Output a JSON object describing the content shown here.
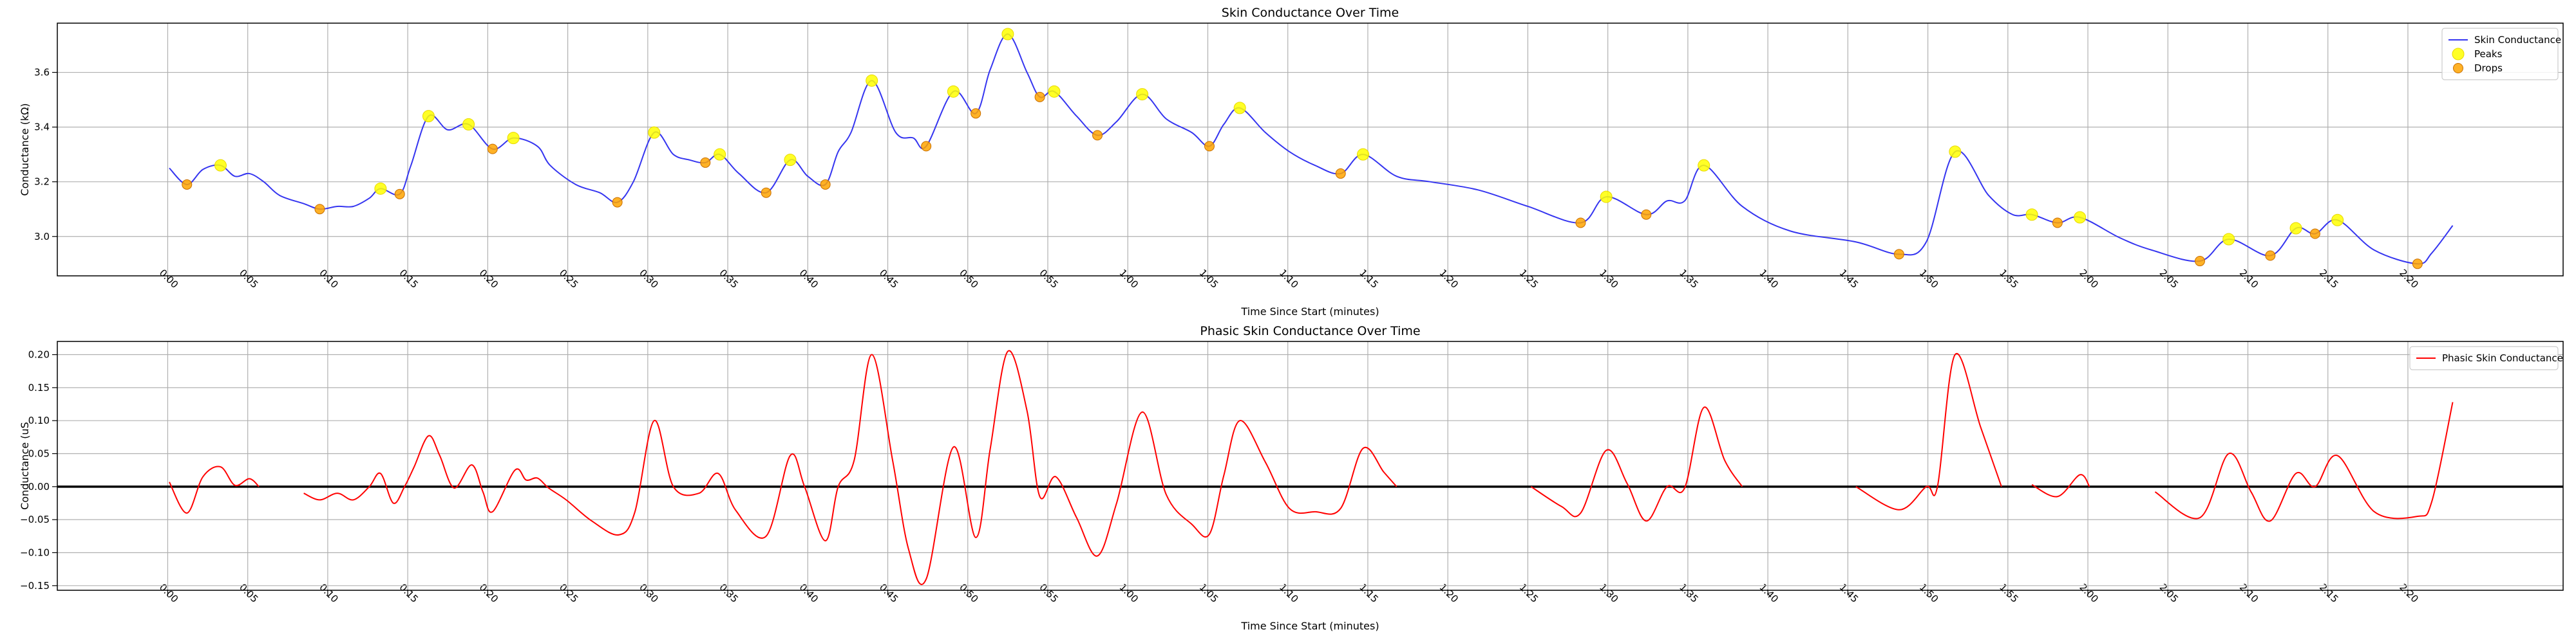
{
  "chart_data": [
    {
      "type": "line",
      "title": "Skin Conductance Over Time",
      "x_label": "Time Since Start (minutes)",
      "y_label": "Conductance (kΩ)",
      "xlim": [
        -6.9,
        149.7
      ],
      "ylim": [
        2.856,
        3.78
      ],
      "grid": true,
      "legend": "upper right",
      "xticks": [
        {
          "value": 0,
          "label": "0:00"
        },
        {
          "value": 5,
          "label": "0:05"
        },
        {
          "value": 10,
          "label": "0:10"
        },
        {
          "value": 15,
          "label": "0:15"
        },
        {
          "value": 20,
          "label": "0:20"
        },
        {
          "value": 25,
          "label": "0:25"
        },
        {
          "value": 30,
          "label": "0:30"
        },
        {
          "value": 35,
          "label": "0:35"
        },
        {
          "value": 40,
          "label": "0:40"
        },
        {
          "value": 45,
          "label": "0:45"
        },
        {
          "value": 50,
          "label": "0:50"
        },
        {
          "value": 55,
          "label": "0:55"
        },
        {
          "value": 60,
          "label": "1:00"
        },
        {
          "value": 65,
          "label": "1:05"
        },
        {
          "value": 70,
          "label": "1:10"
        },
        {
          "value": 75,
          "label": "1:15"
        },
        {
          "value": 80,
          "label": "1:20"
        },
        {
          "value": 85,
          "label": "1:25"
        },
        {
          "value": 90,
          "label": "1:30"
        },
        {
          "value": 95,
          "label": "1:35"
        },
        {
          "value": 100,
          "label": "1:40"
        },
        {
          "value": 105,
          "label": "1:45"
        },
        {
          "value": 110,
          "label": "1:50"
        },
        {
          "value": 115,
          "label": "1:55"
        },
        {
          "value": 120,
          "label": "2:00"
        },
        {
          "value": 125,
          "label": "2:05"
        },
        {
          "value": 130,
          "label": "2:10"
        },
        {
          "value": 135,
          "label": "2:15"
        },
        {
          "value": 140,
          "label": "2:20"
        }
      ],
      "yticks": [
        {
          "value": 3,
          "label": "3.0"
        },
        {
          "value": 3.2,
          "label": "3.2"
        },
        {
          "value": 3.4,
          "label": "3.4"
        },
        {
          "value": 3.6,
          "label": "3.6"
        }
      ],
      "series": [
        {
          "name": "Skin Conductance",
          "type": "line",
          "color": "#3535f0",
          "x": [
            0.1,
            1.2,
            2.2,
            3.3,
            4.2,
            5.1,
            6.0,
            7.0,
            8.5,
            9.5,
            10.6,
            11.6,
            12.6,
            13.3,
            14.5,
            15.2,
            16.3,
            17.5,
            18.8,
            20.3,
            21.6,
            23.1,
            23.9,
            25.5,
            27.0,
            28.1,
            29.1,
            30.4,
            31.6,
            32.6,
            33.6,
            34.5,
            35.7,
            37.4,
            38.9,
            40.0,
            41.1,
            41.9,
            42.7,
            44.0,
            45.5,
            46.6,
            47.4,
            49.1,
            50.5,
            51.4,
            52.5,
            53.7,
            54.5,
            55.4,
            56.8,
            58.1,
            59.3,
            60.9,
            62.4,
            64.0,
            65.1,
            66.0,
            67.0,
            68.6,
            70.1,
            71.7,
            73.3,
            74.7,
            76.8,
            78.9,
            81.9,
            85.0,
            88.3,
            89.9,
            92.4,
            93.7,
            94.8,
            96.0,
            98.4,
            101.4,
            105.5,
            108.2,
            109.9,
            111.7,
            113.8,
            115.3,
            116.5,
            118.1,
            119.5,
            122.0,
            124.0,
            127.0,
            128.8,
            131.4,
            133.0,
            134.2,
            135.6,
            137.9,
            140.6,
            141.5,
            142.8
          ],
          "values": [
            3.25,
            3.19,
            3.245,
            3.26,
            3.22,
            3.23,
            3.2,
            3.15,
            3.12,
            3.1,
            3.11,
            3.11,
            3.14,
            3.175,
            3.155,
            3.26,
            3.44,
            3.39,
            3.41,
            3.32,
            3.36,
            3.33,
            3.26,
            3.19,
            3.16,
            3.125,
            3.2,
            3.38,
            3.3,
            3.28,
            3.27,
            3.3,
            3.23,
            3.16,
            3.28,
            3.22,
            3.19,
            3.31,
            3.38,
            3.57,
            3.38,
            3.36,
            3.33,
            3.53,
            3.45,
            3.61,
            3.74,
            3.6,
            3.51,
            3.53,
            3.44,
            3.37,
            3.42,
            3.52,
            3.43,
            3.38,
            3.33,
            3.41,
            3.47,
            3.38,
            3.31,
            3.26,
            3.23,
            3.3,
            3.22,
            3.2,
            3.17,
            3.11,
            3.05,
            3.145,
            3.08,
            3.13,
            3.13,
            3.26,
            3.11,
            3.02,
            2.98,
            2.935,
            2.98,
            3.31,
            3.15,
            3.08,
            3.08,
            3.05,
            3.07,
            2.995,
            2.95,
            2.91,
            2.99,
            2.93,
            3.03,
            3.01,
            3.06,
            2.95,
            2.9,
            2.94,
            3.04
          ]
        },
        {
          "name": "Peaks",
          "type": "scatter",
          "color": "#ffff00",
          "x": [
            3.3,
            13.3,
            16.3,
            18.8,
            21.6,
            30.4,
            34.5,
            38.9,
            44.0,
            49.1,
            52.5,
            55.4,
            60.9,
            67.0,
            74.7,
            89.9,
            96.0,
            111.7,
            116.5,
            119.5,
            128.8,
            133.0,
            135.6
          ],
          "values": [
            3.26,
            3.175,
            3.44,
            3.41,
            3.36,
            3.38,
            3.3,
            3.28,
            3.57,
            3.53,
            3.74,
            3.53,
            3.52,
            3.47,
            3.3,
            3.145,
            3.26,
            3.31,
            3.08,
            3.07,
            2.99,
            3.03,
            3.06
          ]
        },
        {
          "name": "Drops",
          "type": "scatter",
          "color": "#ffa500",
          "x": [
            1.2,
            9.5,
            14.5,
            20.3,
            28.1,
            33.6,
            37.4,
            41.1,
            47.4,
            50.5,
            54.5,
            58.1,
            65.1,
            73.3,
            88.3,
            92.4,
            108.2,
            118.1,
            127.0,
            131.4,
            134.2,
            140.6
          ],
          "values": [
            3.19,
            3.1,
            3.155,
            3.32,
            3.125,
            3.27,
            3.16,
            3.19,
            3.33,
            3.45,
            3.51,
            3.37,
            3.33,
            3.23,
            3.05,
            3.08,
            2.935,
            3.05,
            2.91,
            2.93,
            3.01,
            2.9
          ]
        }
      ]
    },
    {
      "type": "line",
      "title": "Phasic Skin Conductance Over Time",
      "x_label": "Time Since Start (minutes)",
      "y_label": "Conductance (uS",
      "xlim": [
        -6.9,
        149.7
      ],
      "ylim": [
        -0.157,
        0.22
      ],
      "grid": true,
      "legend": "upper right",
      "hline": 0,
      "xticks": [
        {
          "value": 0,
          "label": "0:00"
        },
        {
          "value": 5,
          "label": "0:05"
        },
        {
          "value": 10,
          "label": "0:10"
        },
        {
          "value": 15,
          "label": "0:15"
        },
        {
          "value": 20,
          "label": "0:20"
        },
        {
          "value": 25,
          "label": "0:25"
        },
        {
          "value": 30,
          "label": "0:30"
        },
        {
          "value": 35,
          "label": "0:35"
        },
        {
          "value": 40,
          "label": "0:40"
        },
        {
          "value": 45,
          "label": "0:45"
        },
        {
          "value": 50,
          "label": "0:50"
        },
        {
          "value": 55,
          "label": "0:55"
        },
        {
          "value": 60,
          "label": "1:00"
        },
        {
          "value": 65,
          "label": "1:05"
        },
        {
          "value": 70,
          "label": "1:10"
        },
        {
          "value": 75,
          "label": "1:15"
        },
        {
          "value": 80,
          "label": "1:20"
        },
        {
          "value": 85,
          "label": "1:25"
        },
        {
          "value": 90,
          "label": "1:30"
        },
        {
          "value": 95,
          "label": "1:35"
        },
        {
          "value": 100,
          "label": "1:40"
        },
        {
          "value": 105,
          "label": "1:45"
        },
        {
          "value": 110,
          "label": "1:50"
        },
        {
          "value": 115,
          "label": "1:55"
        },
        {
          "value": 120,
          "label": "2:00"
        },
        {
          "value": 125,
          "label": "2:05"
        },
        {
          "value": 130,
          "label": "2:10"
        },
        {
          "value": 135,
          "label": "2:15"
        },
        {
          "value": 140,
          "label": "2:20"
        }
      ],
      "yticks": [
        {
          "value": -0.15,
          "label": "−0.15"
        },
        {
          "value": -0.1,
          "label": "−0.10"
        },
        {
          "value": -0.05,
          "label": "−0.05"
        },
        {
          "value": 0,
          "label": "0.00"
        },
        {
          "value": 0.05,
          "label": "0.05"
        },
        {
          "value": 0.1,
          "label": "0.10"
        },
        {
          "value": 0.15,
          "label": "0.15"
        },
        {
          "value": 0.2,
          "label": "0.20"
        }
      ],
      "series": [
        {
          "name": "Phasic Skin Conductance",
          "type": "line",
          "color": "#ff0000",
          "x": [
            0.1,
            1.2,
            2.2,
            3.3,
            4.2,
            5.1,
            5.7,
            7.0,
            8.5,
            9.5,
            10.6,
            11.6,
            12.6,
            13.3,
            14.1,
            14.8,
            15.4,
            16.3,
            17.0,
            17.9,
            19.0,
            19.7,
            20.3,
            21.7,
            22.4,
            23.1,
            23.8,
            24.9,
            26.5,
            28.2,
            29.2,
            30.4,
            31.6,
            33.2,
            34.4,
            35.5,
            37.4,
            38.9,
            39.8,
            41.1,
            41.9,
            42.9,
            44.0,
            45.3,
            46.3,
            47.4,
            49.1,
            50.5,
            51.4,
            52.5,
            53.7,
            54.5,
            55.5,
            56.8,
            58.1,
            59.3,
            60.9,
            62.4,
            64.0,
            65.1,
            66.0,
            67.0,
            68.6,
            70.1,
            71.7,
            73.3,
            74.7,
            76.0,
            76.8,
            81.0,
            85.2,
            87.1,
            88.3,
            89.9,
            91.2,
            92.4,
            93.7,
            94.8,
            96.0,
            97.3,
            98.4,
            102.0,
            105.5,
            108.2,
            109.9,
            110.6,
            111.7,
            113.3,
            114.6,
            115.5,
            116.5,
            118.1,
            119.5,
            120.1,
            122.0,
            124.2,
            127.0,
            128.8,
            130.2,
            131.4,
            133.0,
            134.2,
            135.6,
            137.9,
            140.6,
            141.5,
            142.8
          ],
          "values": [
            0.007,
            -0.04,
            0.015,
            0.03,
            0.002,
            0.012,
            0,
            null,
            -0.01,
            -0.02,
            -0.01,
            -0.02,
            0,
            0.02,
            -0.025,
            0,
            0.03,
            0.077,
            0.047,
            -0.002,
            0.033,
            -0.008,
            -0.038,
            0.025,
            0.01,
            0.013,
            -0.002,
            -0.02,
            -0.052,
            -0.073,
            -0.038,
            0.1,
            0,
            -0.01,
            0.02,
            -0.036,
            -0.075,
            0.047,
            0,
            -0.082,
            0,
            0.04,
            0.2,
            0.04,
            -0.095,
            -0.14,
            0.06,
            -0.077,
            0.057,
            0.205,
            0.115,
            -0.015,
            0.015,
            -0.047,
            -0.105,
            -0.025,
            0.113,
            -0.012,
            -0.057,
            -0.072,
            0.017,
            0.1,
            0.037,
            -0.033,
            -0.038,
            -0.033,
            0.058,
            0.022,
            0,
            null,
            0,
            -0.03,
            -0.04,
            0.055,
            0.005,
            -0.052,
            0,
            -0.002,
            0.12,
            0.04,
            0,
            null,
            0,
            -0.035,
            0,
            0,
            0.2,
            0.09,
            0,
            null,
            0.003,
            -0.015,
            0.018,
            0,
            null,
            -0.008,
            -0.047,
            0.05,
            -0.008,
            -0.052,
            0.02,
            0,
            0.047,
            -0.038,
            -0.045,
            -0.022,
            0.128
          ]
        }
      ]
    }
  ]
}
